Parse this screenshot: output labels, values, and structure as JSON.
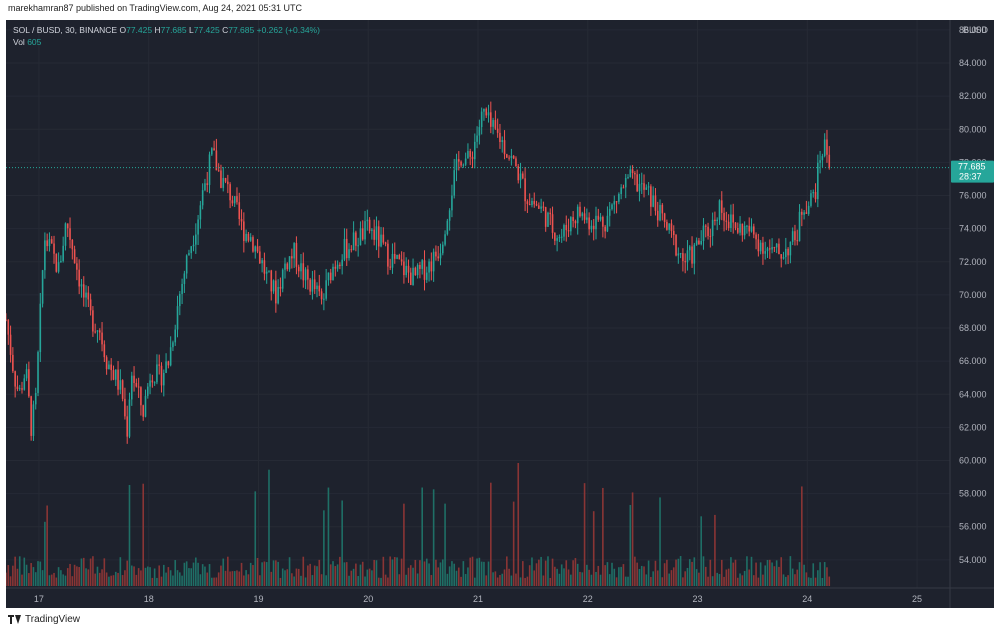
{
  "credit": "marekhamran87 published on TradingView.com, Aug 24, 2021 05:31 UTC",
  "footer_brand": "TradingView",
  "header": {
    "symbol": "SOL / BUSD, 30, BINANCE",
    "o_label": "O",
    "o_value": "77.425",
    "h_label": "H",
    "h_value": "77.685",
    "l_label": "L",
    "l_value": "77.425",
    "c_label": "C",
    "c_value": "77.685",
    "change": "+0.262 (+0.34%)",
    "vol_label": "Vol",
    "vol_value": "605"
  },
  "colors": {
    "background": "#1e222d",
    "up": "#26a69a",
    "down": "#ef5350",
    "vol_up": "#1f6f66",
    "vol_down": "#8a3535",
    "price_tag": "#26a69a",
    "axis_text": "#b2b5be"
  },
  "chart_data": {
    "type": "candlestick",
    "symbol": "SOL / BUSD",
    "interval": "30",
    "exchange": "BINANCE",
    "y_currency": "BUSD",
    "ylim": [
      52.3,
      86.6
    ],
    "y_ticks": [
      "86.000",
      "84.000",
      "82.000",
      "80.000",
      "78.000",
      "76.000",
      "74.000",
      "72.000",
      "70.000",
      "68.000",
      "66.000",
      "64.000",
      "62.000",
      "60.000",
      "58.000",
      "56.000",
      "54.000"
    ],
    "x_ticks": [
      "17",
      "18",
      "19",
      "20",
      "21",
      "22",
      "23",
      "24",
      "25"
    ],
    "x_range_days": [
      16.7,
      25.3
    ],
    "last_price": "77.685",
    "countdown": "28:37",
    "price_path": [
      [
        16.7,
        68.5
      ],
      [
        16.78,
        65.0
      ],
      [
        16.82,
        64.0
      ],
      [
        16.88,
        65.5
      ],
      [
        16.93,
        62.0
      ],
      [
        16.97,
        63.5
      ],
      [
        17.05,
        73.5
      ],
      [
        17.12,
        72.5
      ],
      [
        17.18,
        71.5
      ],
      [
        17.25,
        74.5
      ],
      [
        17.32,
        72.5
      ],
      [
        17.4,
        70.0
      ],
      [
        17.48,
        68.5
      ],
      [
        17.55,
        68.0
      ],
      [
        17.62,
        66.0
      ],
      [
        17.7,
        65.0
      ],
      [
        17.76,
        64.0
      ],
      [
        17.8,
        61.5
      ],
      [
        17.84,
        65.5
      ],
      [
        17.9,
        64.0
      ],
      [
        17.95,
        63.0
      ],
      [
        18.02,
        65.5
      ],
      [
        18.1,
        65.0
      ],
      [
        18.18,
        66.0
      ],
      [
        18.28,
        70.0
      ],
      [
        18.36,
        72.5
      ],
      [
        18.44,
        74.5
      ],
      [
        18.5,
        76.5
      ],
      [
        18.58,
        78.5
      ],
      [
        18.66,
        77.0
      ],
      [
        18.75,
        76.0
      ],
      [
        18.85,
        74.0
      ],
      [
        18.93,
        73.5
      ],
      [
        19.0,
        72.5
      ],
      [
        19.08,
        71.0
      ],
      [
        19.16,
        70.0
      ],
      [
        19.25,
        72.0
      ],
      [
        19.33,
        72.5
      ],
      [
        19.42,
        71.0
      ],
      [
        19.5,
        70.5
      ],
      [
        19.58,
        69.5
      ],
      [
        19.66,
        71.5
      ],
      [
        19.75,
        72.5
      ],
      [
        19.83,
        73.0
      ],
      [
        19.92,
        73.5
      ],
      [
        20.0,
        74.0
      ],
      [
        20.08,
        73.5
      ],
      [
        20.16,
        72.5
      ],
      [
        20.25,
        72.0
      ],
      [
        20.33,
        71.5
      ],
      [
        20.42,
        71.0
      ],
      [
        20.5,
        71.5
      ],
      [
        20.58,
        72.0
      ],
      [
        20.66,
        73.0
      ],
      [
        20.72,
        75.0
      ],
      [
        20.78,
        77.0
      ],
      [
        20.85,
        78.5
      ],
      [
        20.92,
        78.0
      ],
      [
        20.98,
        79.5
      ],
      [
        21.05,
        81.0
      ],
      [
        21.12,
        80.0
      ],
      [
        21.2,
        79.5
      ],
      [
        21.28,
        78.5
      ],
      [
        21.36,
        77.5
      ],
      [
        21.44,
        76.0
      ],
      [
        21.52,
        75.5
      ],
      [
        21.6,
        75.0
      ],
      [
        21.68,
        74.0
      ],
      [
        21.76,
        73.5
      ],
      [
        21.84,
        74.5
      ],
      [
        21.92,
        75.0
      ],
      [
        22.0,
        74.5
      ],
      [
        22.08,
        74.5
      ],
      [
        22.16,
        74.5
      ],
      [
        22.24,
        75.5
      ],
      [
        22.32,
        76.5
      ],
      [
        22.4,
        77.0
      ],
      [
        22.48,
        76.5
      ],
      [
        22.56,
        76.0
      ],
      [
        22.64,
        75.0
      ],
      [
        22.72,
        74.0
      ],
      [
        22.8,
        73.0
      ],
      [
        22.88,
        72.0
      ],
      [
        22.96,
        72.5
      ],
      [
        23.04,
        73.5
      ],
      [
        23.12,
        74.0
      ],
      [
        23.2,
        75.5
      ],
      [
        23.28,
        74.5
      ],
      [
        23.36,
        74.0
      ],
      [
        23.44,
        74.0
      ],
      [
        23.52,
        73.5
      ],
      [
        23.6,
        73.0
      ],
      [
        23.68,
        72.5
      ],
      [
        23.76,
        72.5
      ],
      [
        23.84,
        73.0
      ],
      [
        23.9,
        73.5
      ],
      [
        23.96,
        75.5
      ],
      [
        24.02,
        75.5
      ],
      [
        24.08,
        76.5
      ],
      [
        24.12,
        78.5
      ],
      [
        24.16,
        79.0
      ],
      [
        24.22,
        77.69
      ]
    ]
  }
}
